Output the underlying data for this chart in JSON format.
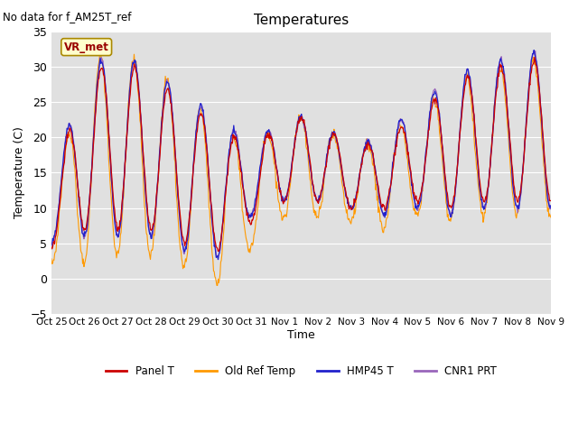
{
  "title": "Temperatures",
  "ylabel": "Temperature (C)",
  "xlabel": "Time",
  "ylim": [
    -5,
    35
  ],
  "yticks": [
    -5,
    0,
    5,
    10,
    15,
    20,
    25,
    30,
    35
  ],
  "no_data_text": "No data for f_AM25T_ref",
  "vr_met_label": "VR_met",
  "bg_color": "#e0e0e0",
  "line_colors": {
    "panel": "#cc0000",
    "old_ref": "#ff9900",
    "hmp45": "#2222cc",
    "cnr1": "#9966bb"
  },
  "legend_labels": [
    "Panel T",
    "Old Ref Temp",
    "HMP45 T",
    "CNR1 PRT"
  ],
  "xtick_labels": [
    "Oct 25",
    "Oct 26",
    "Oct 27",
    "Oct 28",
    "Oct 29",
    "Oct 30",
    "Oct 31",
    "Nov 1",
    "Nov 2",
    "Nov 3",
    "Nov 4",
    "Nov 5",
    "Nov 6",
    "Nov 7",
    "Nov 8",
    "Nov 9"
  ],
  "fig_width": 6.4,
  "fig_height": 4.8,
  "dpi": 100,
  "day_mids_panel": [
    8,
    18,
    19,
    18,
    15,
    13,
    13,
    17,
    17,
    14,
    15,
    17,
    19,
    20,
    21,
    21
  ],
  "day_amps_panel": [
    4,
    11,
    12,
    11,
    10,
    9,
    5,
    6,
    6,
    4,
    5,
    6,
    9,
    9,
    10,
    10
  ],
  "day_mids_orange": [
    6,
    17,
    18,
    17,
    14,
    11,
    12,
    16,
    16,
    13,
    14,
    16,
    18,
    19,
    20,
    20
  ],
  "day_amps_orange": [
    4,
    14,
    14,
    13,
    12,
    11,
    6,
    7,
    7,
    5,
    7,
    7,
    10,
    10,
    11,
    11
  ],
  "day_mids_blue": [
    9,
    18,
    19,
    18,
    15,
    13,
    14,
    17,
    17,
    14,
    15,
    17,
    19,
    20,
    21,
    21
  ],
  "day_amps_blue": [
    4,
    12,
    13,
    12,
    11,
    10,
    5,
    6,
    6,
    4,
    6,
    7,
    10,
    10,
    11,
    11
  ],
  "day_mids_purple": [
    9,
    18,
    19,
    18,
    15,
    13,
    14,
    17,
    17,
    14,
    15,
    17,
    19,
    20,
    21,
    21
  ],
  "day_amps_purple": [
    4,
    12,
    13,
    12,
    11,
    10,
    5,
    6,
    6,
    4,
    6,
    7,
    10,
    10,
    11,
    11
  ]
}
